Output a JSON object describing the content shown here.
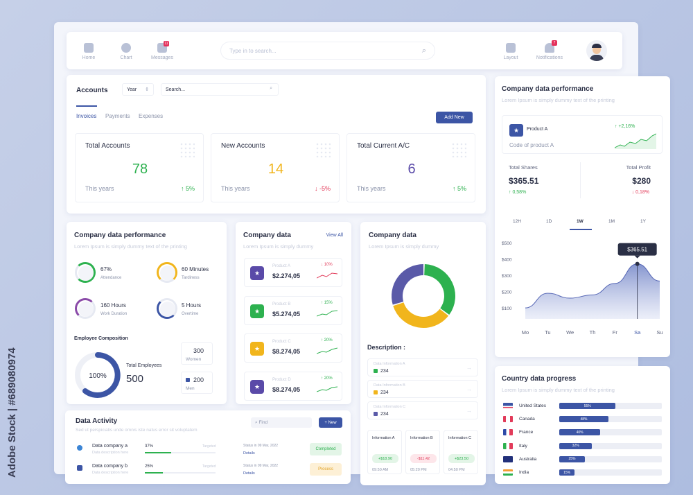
{
  "nav": {
    "items": [
      {
        "label": "Home"
      },
      {
        "label": "Chart"
      },
      {
        "label": "Messages",
        "badge": "11"
      }
    ],
    "search_placeholder": "Type in to search...",
    "right_items": [
      {
        "label": "Layout"
      },
      {
        "label": "Notifications",
        "badge": "7"
      }
    ]
  },
  "accounts": {
    "title": "Accounts",
    "year_label": "Year",
    "search_placeholder": "Search...",
    "tabs": [
      "Invoices",
      "Payments",
      "Expenses"
    ],
    "add_button": "Add New",
    "stats": [
      {
        "title": "Total Accounts",
        "value": "78",
        "period": "This years",
        "change": "5%",
        "dir": "up",
        "color": "#2db14f"
      },
      {
        "title": "New Accounts",
        "value": "14",
        "period": "This years",
        "change": "-5%",
        "dir": "down",
        "color": "#f1b51c"
      },
      {
        "title": "Total Current A/C",
        "value": "6",
        "period": "This years",
        "change": "5%",
        "dir": "up",
        "color": "#5a4aa8"
      }
    ]
  },
  "perf": {
    "title": "Company data performance",
    "subtitle": "Lorem Ipsum is simply dummy text of the printing",
    "metrics": [
      {
        "value": "67%",
        "label": "Attendance",
        "color": "#2db14f"
      },
      {
        "value": "60 Minutes",
        "label": "Tardiness",
        "color": "#f1b51c"
      },
      {
        "value": "160 Hours",
        "label": "Work Duration",
        "color": "#8a4aa8"
      },
      {
        "value": "5 Hours",
        "label": "Overtime",
        "color": "#3c55a5"
      }
    ],
    "composition_title": "Employee Composition",
    "composition_pct": "100%",
    "total_label": "Total Employees",
    "total_value": "500",
    "women_value": "300",
    "women_label": "Women",
    "men_value": "200",
    "men_label": "Men"
  },
  "company_list": {
    "title": "Company data",
    "view_all": "View All",
    "subtitle": "Lorem Ipsum is simply dummy",
    "products": [
      {
        "name": "Product A",
        "value": "$2.274,05",
        "change": "10%",
        "dir": "down",
        "color": "#5a4aa8"
      },
      {
        "name": "Product B",
        "value": "$5.274,05",
        "change": "15%",
        "dir": "up",
        "color": "#2db14f"
      },
      {
        "name": "Product C",
        "value": "$8.274,05",
        "change": "20%",
        "dir": "up",
        "color": "#f1b51c"
      },
      {
        "name": "Product D",
        "value": "$8.274,05",
        "change": "20%",
        "dir": "up",
        "color": "#5a4aa8"
      }
    ]
  },
  "company_donut": {
    "title": "Company data",
    "subtitle": "Lorem Ipsum is simply dummy",
    "description_title": "Description :",
    "segments": [
      {
        "value": 35,
        "color": "#2db14f"
      },
      {
        "value": 35,
        "color": "#f1b51c"
      },
      {
        "value": 30,
        "color": "#5a5aa8"
      }
    ],
    "descriptions": [
      {
        "label": "Data Information A",
        "value": "234",
        "color": "#2db14f"
      },
      {
        "label": "Data Information B",
        "value": "234",
        "color": "#f1b51c"
      },
      {
        "label": "Data Information C",
        "value": "234",
        "color": "#5a5aa8"
      }
    ],
    "infos": [
      {
        "label": "Information A",
        "pill": "+$18.90",
        "time": "09:50 AM",
        "bg": "#e3f5e7",
        "fg": "#2db14f"
      },
      {
        "label": "Information B",
        "pill": "-$11.42",
        "time": "05:20 PM",
        "bg": "#fde6ea",
        "fg": "#e23b5a"
      },
      {
        "label": "Information C",
        "pill": "+$23.50",
        "time": "04:50 PM",
        "bg": "#e3f5e7",
        "fg": "#2db14f"
      }
    ]
  },
  "activity": {
    "title": "Data Activity",
    "subtitle": "Sed ut perspiciatis unde omnis iste natus error sit voluptatem",
    "find_placeholder": "Find",
    "new_button": "+ New",
    "rows": [
      {
        "name": "Data company a",
        "desc": "Data description here",
        "pct": "37%",
        "progress": 0.37,
        "target": "Targeted",
        "status": "Status in 09 Mar, 2022",
        "details": "Details",
        "action": "Completed",
        "bg": "#e3f5e7",
        "fg": "#2db14f"
      },
      {
        "name": "Data company b",
        "desc": "Data description here",
        "pct": "25%",
        "progress": 0.25,
        "target": "Targeted",
        "status": "Status in 09 Mar, 2022",
        "details": "Details",
        "action": "Process",
        "bg": "#fdf0d6",
        "fg": "#e0a020"
      }
    ]
  },
  "performance_right": {
    "title": "Company data performance",
    "subtitle": "Lorem Ipsum is simply dummy text of the printing",
    "product_name": "Product A",
    "product_code": "Code of product A",
    "product_change": "+2,16%",
    "shares_label": "Total Shares",
    "shares_value": "$365.51",
    "shares_change": "0,58%",
    "profit_label": "Total Profit",
    "profit_value": "$280",
    "profit_change": "0,18%",
    "ranges": [
      "12H",
      "1D",
      "1W",
      "1M",
      "1Y"
    ],
    "active_range": "1W"
  },
  "chart_data": {
    "type": "area",
    "y_ticks": [
      "$500",
      "$400",
      "$300",
      "$200",
      "$100"
    ],
    "ylim": [
      0,
      500
    ],
    "categories": [
      "Mo",
      "Tu",
      "We",
      "Th",
      "Fr",
      "Sa",
      "Su"
    ],
    "values": [
      100,
      190,
      160,
      180,
      250,
      370,
      265
    ],
    "highlight": {
      "category": "Sa",
      "label": "$365.51"
    }
  },
  "country": {
    "title": "Country data progress",
    "subtitle": "Lorem Ipsum is simply dummy text of the printing",
    "rows": [
      {
        "name": "United States",
        "pct": "55%",
        "progress": 0.55
      },
      {
        "name": "Canada",
        "pct": "48%",
        "progress": 0.48
      },
      {
        "name": "France",
        "pct": "40%",
        "progress": 0.4
      },
      {
        "name": "Italy",
        "pct": "32%",
        "progress": 0.32
      },
      {
        "name": "Australia",
        "pct": "25%",
        "progress": 0.25
      },
      {
        "name": "India",
        "pct": "15%",
        "progress": 0.15
      }
    ]
  },
  "watermark": {
    "side_text": "Adobe Stock | #689080974"
  }
}
